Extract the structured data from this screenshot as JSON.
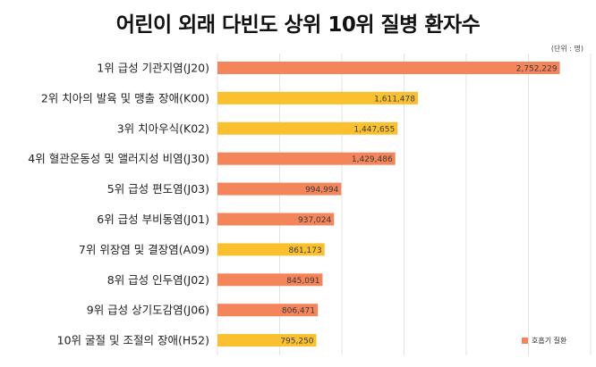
{
  "chart_data": {
    "type": "bar",
    "orientation": "horizontal",
    "title": "어린이 외래 다빈도 상위 10위 질병 환자수",
    "unit_label": "(단위 : 명)",
    "categories": [
      "1위 급성 기관지염(J20)",
      "2위 치아의 발육 및 맹출 장애(K00)",
      "3위 치아우식(K02)",
      "4위 혈관운동성 및 앨러지성 비염(J30)",
      "5위 급성 편도염(J03)",
      "6위 급성 부비동염(J01)",
      "7위 위장염 및 결장염(A09)",
      "8위 급성 인두염(J02)",
      "9위 급성 상기도감염(J06)",
      "10위 굴절 및 조절의 장애(H52)"
    ],
    "values": [
      2752229,
      1611478,
      1447655,
      1429486,
      994994,
      937024,
      861173,
      845091,
      806471,
      795250
    ],
    "value_labels": [
      "2,752,229",
      "1,611,478",
      "1,447,655",
      "1,429,486",
      "994,994",
      "937,024",
      "861,173",
      "845,091",
      "806,471",
      "795,250"
    ],
    "groups": [
      "respiratory",
      "other",
      "other",
      "respiratory",
      "respiratory",
      "respiratory",
      "other",
      "respiratory",
      "respiratory",
      "other"
    ],
    "xlim": [
      0,
      3000000
    ],
    "gridlines": 7,
    "colors": {
      "respiratory": "#f4845a",
      "other": "#fbc02d"
    },
    "legend": [
      {
        "label": "호흡기 질환",
        "group": "respiratory"
      }
    ],
    "legend_position": "bottom-right"
  }
}
